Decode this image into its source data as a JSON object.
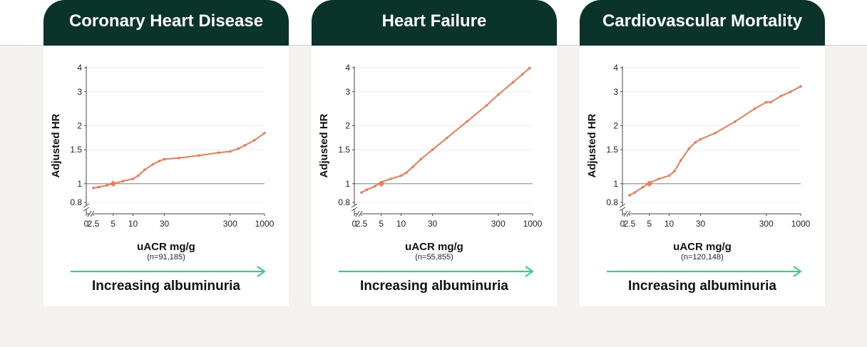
{
  "colors": {
    "header_bg": "#0a3329",
    "series": "#ef7a55",
    "reference_line": "#8a8a8a",
    "arrow": "#2ed47a"
  },
  "chart_data": [
    {
      "type": "line",
      "title": "Coronary Heart Disease",
      "xlabel": "uACR mg/g",
      "n_label": "(n=91,185)",
      "ylabel": "Adjusted HR",
      "y_scale": "log",
      "x_ticks": [
        "0",
        "2.5",
        "5",
        "10",
        "30",
        "300",
        "1000"
      ],
      "y_ticks": [
        "0.8",
        "1",
        "1.5",
        "2",
        "3",
        "4"
      ],
      "reference_point": {
        "x": 5,
        "y": 1
      },
      "grid": true,
      "series": [
        {
          "x": [
            2.5,
            3,
            4,
            5,
            7,
            10,
            12,
            15,
            20,
            25,
            30,
            50,
            100,
            200,
            300,
            400,
            500,
            700,
            1000
          ],
          "y": [
            0.95,
            0.96,
            0.98,
            1.0,
            1.03,
            1.06,
            1.1,
            1.18,
            1.26,
            1.31,
            1.34,
            1.36,
            1.4,
            1.45,
            1.47,
            1.52,
            1.58,
            1.68,
            1.83
          ]
        }
      ],
      "arrow_label": "Increasing albuminuria"
    },
    {
      "type": "line",
      "title": "Heart Failure",
      "xlabel": "uACR mg/g",
      "n_label": "(n=55,855)",
      "ylabel": "Adjusted HR",
      "y_scale": "log",
      "x_ticks": [
        "0",
        "2.5",
        "5",
        "10",
        "30",
        "300",
        "1000"
      ],
      "y_ticks": [
        "0.8",
        "1",
        "1.5",
        "2",
        "3",
        "4"
      ],
      "reference_point": {
        "x": 5,
        "y": 1
      },
      "grid": true,
      "series": [
        {
          "x": [
            2.5,
            3,
            4,
            5,
            7,
            10,
            12,
            15,
            20,
            30,
            50,
            100,
            200,
            300,
            500,
            700,
            900
          ],
          "y": [
            0.9,
            0.93,
            0.97,
            1.02,
            1.06,
            1.1,
            1.14,
            1.22,
            1.34,
            1.5,
            1.73,
            2.1,
            2.55,
            2.9,
            3.35,
            3.7,
            3.98
          ]
        }
      ],
      "arrow_label": "Increasing albuminuria"
    },
    {
      "type": "line",
      "title": "Cardiovascular Mortality",
      "xlabel": "uACR mg/g",
      "n_label": "(n=120,148)",
      "ylabel": "Adjusted HR",
      "y_scale": "log",
      "x_ticks": [
        "0",
        "2.5",
        "5",
        "10",
        "30",
        "300",
        "1000"
      ],
      "y_ticks": [
        "0.8",
        "1",
        "1.5",
        "2",
        "3",
        "4"
      ],
      "reference_point": {
        "x": 5,
        "y": 1
      },
      "grid": true,
      "series": [
        {
          "x": [
            2.5,
            3,
            4,
            5,
            7,
            10,
            12,
            15,
            20,
            25,
            30,
            50,
            100,
            200,
            300,
            350,
            500,
            700,
            1000
          ],
          "y": [
            0.87,
            0.9,
            0.96,
            1.01,
            1.06,
            1.1,
            1.16,
            1.32,
            1.52,
            1.64,
            1.7,
            1.83,
            2.1,
            2.45,
            2.65,
            2.65,
            2.85,
            3.0,
            3.2
          ]
        }
      ],
      "arrow_label": "Increasing albuminuria"
    }
  ]
}
